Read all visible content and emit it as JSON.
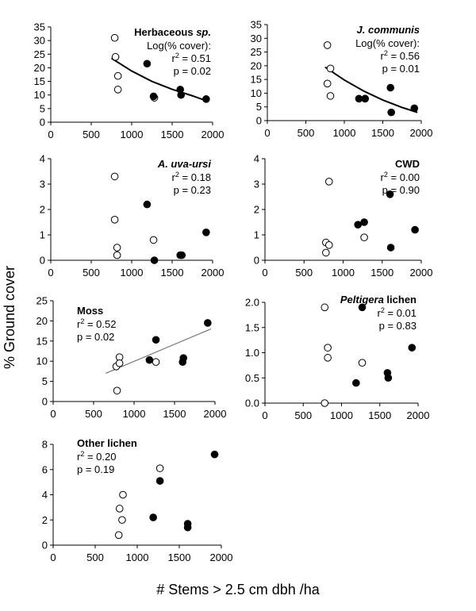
{
  "figure": {
    "ylabel": "% Ground cover",
    "xlabel": "# Stems > 2.5 cm dbh /ha"
  },
  "chart_data": [
    {
      "type": "scatter",
      "title": "Herbaceous",
      "title_suffix": "sp.",
      "title_italic": false,
      "stats_header": "Log(% cover):",
      "r2": "0.51",
      "p": "0.02",
      "xlim": [
        0,
        2000
      ],
      "ylim": [
        0,
        35
      ],
      "xticks": [
        "0",
        "500",
        "1000",
        "1500",
        "2000"
      ],
      "yticks": [
        "0",
        "5",
        "10",
        "15",
        "20",
        "25",
        "30",
        "35"
      ],
      "trend": "curve",
      "trend_points": [
        [
          750,
          23.5
        ],
        [
          1000,
          18.8
        ],
        [
          1250,
          15.0
        ],
        [
          1500,
          12.1
        ],
        [
          1750,
          9.7
        ],
        [
          1950,
          7.6
        ]
      ],
      "series": [
        {
          "marker": "open",
          "points": [
            [
              790,
              31
            ],
            [
              800,
              24
            ],
            [
              830,
              17
            ],
            [
              830,
              12
            ],
            [
              1280,
              9
            ]
          ]
        },
        {
          "marker": "filled",
          "points": [
            [
              1190,
              21.5
            ],
            [
              1270,
              9.5
            ],
            [
              1600,
              12
            ],
            [
              1610,
              10
            ],
            [
              1920,
              8.5
            ]
          ]
        }
      ]
    },
    {
      "type": "scatter",
      "title": "J. communis",
      "title_suffix": "",
      "title_italic": true,
      "stats_header": "Log(% cover):",
      "r2": "0.56",
      "p": "0.01",
      "xlim": [
        0,
        2000
      ],
      "ylim": [
        0,
        35
      ],
      "xticks": [
        "0",
        "500",
        "1000",
        "1500",
        "2000"
      ],
      "yticks": [
        "0",
        "5",
        "10",
        "15",
        "20",
        "25",
        "30",
        "35"
      ],
      "trend": "curve",
      "trend_points": [
        [
          750,
          19.5
        ],
        [
          1000,
          14.8
        ],
        [
          1250,
          10.8
        ],
        [
          1500,
          7.5
        ],
        [
          1750,
          4.8
        ],
        [
          1950,
          3.0
        ]
      ],
      "series": [
        {
          "marker": "open",
          "points": [
            [
              780,
              27.5
            ],
            [
              780,
              13.5
            ],
            [
              820,
              19
            ],
            [
              820,
              9
            ],
            [
              1270,
              8
            ]
          ]
        },
        {
          "marker": "filled",
          "points": [
            [
              1190,
              8
            ],
            [
              1270,
              8
            ],
            [
              1600,
              12
            ],
            [
              1610,
              3
            ],
            [
              1910,
              4.5
            ]
          ]
        }
      ]
    },
    {
      "type": "scatter",
      "title": "A. uva-ursi",
      "title_suffix": "",
      "title_italic": true,
      "stats_header": "",
      "r2": "0.18",
      "p": "0.23",
      "xlim": [
        0,
        2000
      ],
      "ylim": [
        0,
        4
      ],
      "xticks": [
        "0",
        "500",
        "1000",
        "1500",
        "2000"
      ],
      "yticks": [
        "0",
        "1",
        "2",
        "3",
        "4"
      ],
      "trend": "none",
      "series": [
        {
          "marker": "open",
          "points": [
            [
              790,
              3.3
            ],
            [
              790,
              1.6
            ],
            [
              820,
              0.5
            ],
            [
              820,
              0.2
            ],
            [
              1270,
              0.8
            ]
          ]
        },
        {
          "marker": "filled",
          "points": [
            [
              1190,
              2.2
            ],
            [
              1280,
              0.0
            ],
            [
              1600,
              0.2
            ],
            [
              1620,
              0.2
            ],
            [
              1920,
              1.1
            ]
          ]
        }
      ]
    },
    {
      "type": "scatter",
      "title": "CWD",
      "title_suffix": "",
      "title_italic": false,
      "stats_header": "",
      "r2": "0.00",
      "p": "0.90",
      "xlim": [
        0,
        2000
      ],
      "ylim": [
        0,
        4
      ],
      "xticks": [
        "0",
        "500",
        "1000",
        "1500",
        "2000"
      ],
      "yticks": [
        "0",
        "1",
        "2",
        "3",
        "4"
      ],
      "trend": "none",
      "series": [
        {
          "marker": "open",
          "points": [
            [
              820,
              3.1
            ],
            [
              780,
              0.7
            ],
            [
              820,
              0.6
            ],
            [
              780,
              0.3
            ],
            [
              1270,
              0.9
            ]
          ]
        },
        {
          "marker": "filled",
          "points": [
            [
              1190,
              1.4
            ],
            [
              1270,
              1.5
            ],
            [
              1600,
              2.6
            ],
            [
              1610,
              0.5
            ],
            [
              1920,
              1.2
            ]
          ]
        }
      ]
    },
    {
      "type": "scatter",
      "title": "Moss",
      "title_suffix": "",
      "title_italic": false,
      "stats_header": "",
      "r2": "0.52",
      "p": "0.02",
      "xlim": [
        0,
        2000
      ],
      "ylim": [
        0,
        25
      ],
      "xticks": [
        "0",
        "500",
        "1000",
        "1500",
        "2000"
      ],
      "yticks": [
        "0",
        "5",
        "10",
        "15",
        "20",
        "25"
      ],
      "trend": "line",
      "trend_points": [
        [
          650,
          7.0
        ],
        [
          1950,
          18.0
        ]
      ],
      "series": [
        {
          "marker": "open",
          "points": [
            [
              780,
              8.7
            ],
            [
              820,
              11
            ],
            [
              820,
              9.5
            ],
            [
              790,
              2.7
            ],
            [
              1270,
              9.8
            ]
          ]
        },
        {
          "marker": "filled",
          "points": [
            [
              1190,
              10.3
            ],
            [
              1270,
              15.3
            ],
            [
              1600,
              9.8
            ],
            [
              1610,
              10.8
            ],
            [
              1910,
              19.5
            ]
          ]
        }
      ]
    },
    {
      "type": "scatter",
      "title": "Peltigera",
      "title_suffix": "lichen",
      "title_italic": true,
      "stats_header": "",
      "r2": "0.01",
      "p": "0.83",
      "xlim": [
        0,
        2000
      ],
      "ylim": [
        0,
        2
      ],
      "xticks": [
        "0",
        "500",
        "1000",
        "1500",
        "2000"
      ],
      "yticks": [
        "0.0",
        "0.5",
        "1.0",
        "1.5",
        "2.0"
      ],
      "trend": "none",
      "series": [
        {
          "marker": "open",
          "points": [
            [
              780,
              1.9
            ],
            [
              820,
              1.1
            ],
            [
              820,
              0.9
            ],
            [
              780,
              0.0
            ],
            [
              1270,
              0.8
            ]
          ]
        },
        {
          "marker": "filled",
          "points": [
            [
              1270,
              1.9
            ],
            [
              1190,
              0.4
            ],
            [
              1600,
              0.6
            ],
            [
              1610,
              0.5
            ],
            [
              1920,
              1.1
            ]
          ]
        }
      ]
    },
    {
      "type": "scatter",
      "title": "Other lichen",
      "title_suffix": "",
      "title_italic": false,
      "stats_header": "",
      "r2": "0.20",
      "p": "0.19",
      "xlim": [
        0,
        2000
      ],
      "ylim": [
        0,
        8
      ],
      "xticks": [
        "0",
        "500",
        "1000",
        "1500",
        "2000"
      ],
      "yticks": [
        "0",
        "2",
        "4",
        "6",
        "8"
      ],
      "trend": "none",
      "series": [
        {
          "marker": "open",
          "points": [
            [
              830,
              4.0
            ],
            [
              790,
              2.9
            ],
            [
              820,
              2.0
            ],
            [
              780,
              0.8
            ],
            [
              1270,
              6.1
            ]
          ]
        },
        {
          "marker": "filled",
          "points": [
            [
              1270,
              5.1
            ],
            [
              1190,
              2.2
            ],
            [
              1600,
              1.7
            ],
            [
              1600,
              1.4
            ],
            [
              1920,
              7.2
            ]
          ]
        }
      ]
    }
  ]
}
